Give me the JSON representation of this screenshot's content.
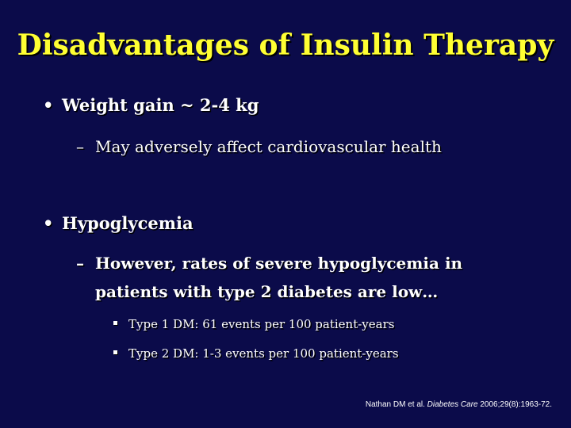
{
  "title": "Disadvantages of Insulin Therapy",
  "bullets": [
    {
      "marker": "•",
      "text": "Weight gain ~ 2-4 kg",
      "sub": [
        {
          "marker": "–",
          "text": "May adversely affect cardiovascular health"
        }
      ]
    },
    {
      "marker": "•",
      "text": "Hypoglycemia",
      "sub": [
        {
          "marker": "–",
          "line1": "However, rates of severe hypoglycemia in",
          "line2": "patients with type 2 diabetes are low…",
          "items": [
            "Type 1 DM: 61 events per 100 patient-years",
            "Type 2 DM: 1-3 events per 100 patient-years"
          ]
        }
      ]
    }
  ],
  "citation": {
    "authors": "Nathan DM et al. ",
    "journal": "Diabetes Care",
    "details": " 2006;29(8):1963-72."
  },
  "colors": {
    "background": "#0b0b4a",
    "title": "#ffff33",
    "text": "#ffffff"
  }
}
